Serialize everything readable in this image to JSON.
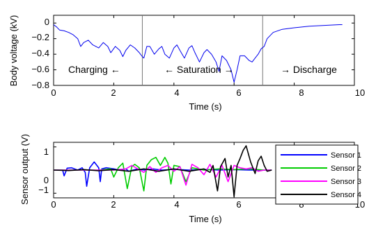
{
  "chart_data": [
    {
      "type": "line",
      "xlabel": "Time (s)",
      "ylabel": "Body voltage (kV)",
      "xlim": [
        0,
        10
      ],
      "ylim": [
        -0.8,
        0.1
      ],
      "xticks": [
        0,
        2,
        4,
        6,
        8,
        10
      ],
      "xtick_labels": [
        "0",
        "2",
        "4",
        "6",
        "8",
        "10"
      ],
      "yticks": [
        0,
        -0.2,
        -0.4,
        -0.6,
        -0.8
      ],
      "ytick_labels": [
        "0",
        "−0.2",
        "−0.4",
        "−0.6",
        "−0.8"
      ],
      "series": [
        {
          "color": "#0000ee",
          "x": [
            0.0,
            0.1,
            0.2,
            0.35,
            0.5,
            0.65,
            0.8,
            0.9,
            1.0,
            1.15,
            1.3,
            1.5,
            1.65,
            1.8,
            1.9,
            2.05,
            2.2,
            2.3,
            2.4,
            2.55,
            2.7,
            2.85,
            2.95,
            3.0,
            3.1,
            3.2,
            3.35,
            3.5,
            3.6,
            3.7,
            3.85,
            4.0,
            4.1,
            4.2,
            4.35,
            4.5,
            4.6,
            4.7,
            4.85,
            5.0,
            5.1,
            5.25,
            5.4,
            5.5,
            5.6,
            5.75,
            5.9,
            6.0,
            6.1,
            6.2,
            6.35,
            6.5,
            6.6,
            6.7,
            6.8,
            6.9,
            7.0,
            7.1,
            7.3,
            7.6,
            8.0,
            8.5,
            9.0,
            9.5,
            9.6
          ],
          "y": [
            -0.02,
            -0.05,
            -0.09,
            -0.1,
            -0.12,
            -0.15,
            -0.2,
            -0.3,
            -0.25,
            -0.22,
            -0.28,
            -0.32,
            -0.25,
            -0.3,
            -0.38,
            -0.3,
            -0.35,
            -0.43,
            -0.35,
            -0.28,
            -0.32,
            -0.38,
            -0.43,
            -0.45,
            -0.3,
            -0.3,
            -0.4,
            -0.33,
            -0.3,
            -0.4,
            -0.45,
            -0.32,
            -0.28,
            -0.35,
            -0.45,
            -0.32,
            -0.29,
            -0.38,
            -0.5,
            -0.38,
            -0.34,
            -0.4,
            -0.5,
            -0.62,
            -0.42,
            -0.48,
            -0.6,
            -0.76,
            -0.6,
            -0.42,
            -0.42,
            -0.48,
            -0.5,
            -0.45,
            -0.4,
            -0.33,
            -0.3,
            -0.2,
            -0.12,
            -0.08,
            -0.06,
            -0.04,
            -0.03,
            -0.02,
            -0.02
          ]
        }
      ],
      "vlines": [
        2.95,
        6.95
      ],
      "annotations": [
        "Charging ←",
        "← Saturation →",
        "→ Discharge"
      ]
    },
    {
      "type": "line",
      "xlabel": "Time (s)",
      "ylabel": "Sensor output (V)",
      "xlim": [
        0,
        10
      ],
      "ylim": [
        -1.2,
        1.2
      ],
      "xticks": [
        0,
        2,
        4,
        6,
        8,
        10
      ],
      "xtick_labels": [
        "0",
        "2",
        "4",
        "6",
        "8",
        "10"
      ],
      "yticks": [
        1,
        0,
        -1
      ],
      "ytick_labels": [
        "1",
        "0",
        "−1"
      ],
      "legend_position": "top-right",
      "series": [
        {
          "name": "Sensor 1",
          "color": "#0000ff",
          "x": [
            0,
            0.3,
            0.35,
            0.45,
            0.6,
            0.8,
            0.95,
            1.05,
            1.1,
            1.2,
            1.35,
            1.5,
            1.55,
            1.6,
            1.75,
            2.0,
            2.2,
            2.4,
            2.5,
            2.8,
            3.0,
            3.3,
            3.6,
            4.0,
            4.5,
            5.0,
            5.5,
            6.0,
            6.5,
            7.0,
            7.25
          ],
          "y": [
            0,
            0,
            -0.25,
            0.08,
            0.1,
            0,
            0.1,
            -0.1,
            -0.7,
            0.1,
            0.35,
            0.1,
            -0.5,
            0.05,
            0.1,
            0.05,
            0,
            0.05,
            -0.05,
            0.05,
            0,
            0.05,
            0,
            0.03,
            0,
            0.03,
            0,
            0.02,
            0,
            0,
            0
          ]
        },
        {
          "name": "Sensor 2",
          "color": "#00cc00",
          "x": [
            0,
            1.5,
            1.9,
            2.0,
            2.15,
            2.3,
            2.45,
            2.6,
            2.7,
            2.85,
            3.0,
            3.1,
            3.25,
            3.4,
            3.55,
            3.7,
            3.8,
            3.9,
            4.0,
            4.2,
            4.4,
            4.6,
            4.8,
            5.0,
            5.5,
            6.0,
            6.5,
            7.0,
            7.25
          ],
          "y": [
            0,
            0,
            0.05,
            -0.3,
            0.1,
            0.3,
            -0.8,
            0.15,
            0.25,
            0.1,
            -0.9,
            0.2,
            0.45,
            0.55,
            0.2,
            0.55,
            0.3,
            -0.6,
            0.2,
            0.15,
            -0.5,
            0.1,
            0.05,
            0,
            0.05,
            0.02,
            0.05,
            0,
            0
          ]
        },
        {
          "name": "Sensor 3",
          "color": "#ff00ff",
          "x": [
            0,
            2.0,
            2.4,
            2.6,
            2.8,
            3.0,
            3.2,
            3.4,
            3.6,
            3.8,
            4.0,
            4.2,
            4.4,
            4.6,
            4.8,
            5.0,
            5.2,
            5.4,
            5.6,
            5.8,
            6.0,
            6.2,
            6.4,
            6.6,
            6.8,
            7.0,
            7.25
          ],
          "y": [
            0,
            0,
            0.05,
            0.2,
            0.05,
            -0.1,
            0.15,
            -0.1,
            0.1,
            0.2,
            -0.05,
            0.15,
            -0.65,
            0.25,
            0.1,
            -0.2,
            0.25,
            -0.3,
            0.2,
            -0.5,
            0.2,
            0.1,
            0.05,
            0.1,
            -0.05,
            0,
            0
          ]
        },
        {
          "name": "Sensor 4",
          "color": "#000000",
          "x": [
            0,
            0.5,
            1.0,
            1.5,
            2.0,
            2.5,
            3.0,
            3.5,
            4.0,
            4.5,
            5.0,
            5.2,
            5.3,
            5.45,
            5.55,
            5.7,
            5.8,
            5.9,
            6.0,
            6.1,
            6.2,
            6.3,
            6.4,
            6.55,
            6.7,
            6.8,
            6.9,
            7.0,
            7.1,
            7.25
          ],
          "y": [
            0,
            -0.02,
            0.02,
            -0.03,
            0.02,
            -0.05,
            0.05,
            -0.05,
            0.05,
            -0.05,
            0.05,
            -0.1,
            0.2,
            -0.9,
            0.15,
            0.5,
            -0.3,
            0.2,
            -1.15,
            0.2,
            0.5,
            0.85,
            1.05,
            0.35,
            -0.15,
            0.4,
            0.6,
            0.2,
            -0.05,
            0
          ]
        }
      ]
    }
  ]
}
